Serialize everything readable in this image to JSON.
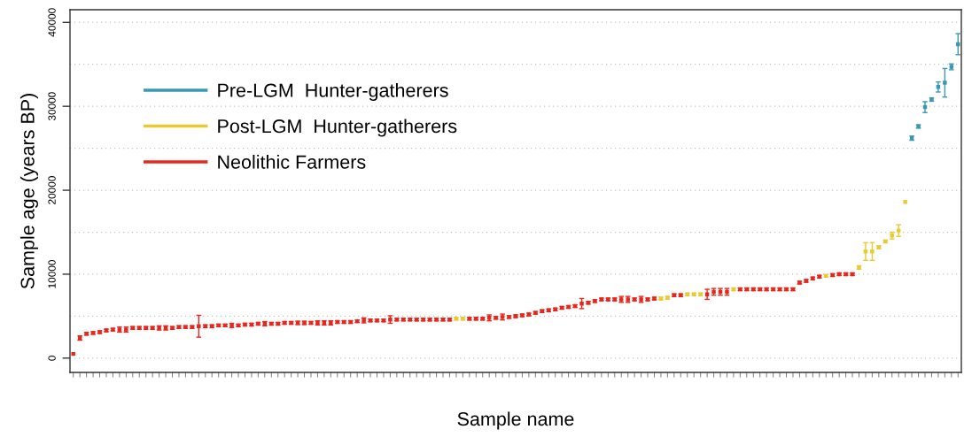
{
  "chart_data": {
    "type": "scatter",
    "xlabel": "Sample name",
    "ylabel": "Sample age (years BP)",
    "categories": [
      null,
      null,
      null,
      null,
      null,
      null,
      null,
      null,
      null,
      null,
      null,
      null,
      null,
      null,
      null,
      null,
      null,
      null,
      null,
      null,
      null,
      null,
      null,
      null,
      null,
      null,
      null,
      null,
      null,
      null,
      null,
      null,
      null,
      null,
      null,
      null,
      null,
      null,
      null,
      null,
      null,
      null,
      null,
      null,
      null,
      null,
      null,
      null,
      null,
      null,
      null,
      null,
      null,
      null,
      null,
      null,
      null,
      null,
      null,
      null,
      null,
      null,
      null,
      null,
      null,
      null,
      null,
      null,
      null,
      null,
      null,
      null,
      null,
      null,
      null,
      null,
      null,
      null,
      null,
      null,
      null,
      null,
      null,
      null,
      null,
      null,
      null,
      null,
      null,
      null,
      null,
      null,
      null,
      null,
      null,
      null,
      null,
      null,
      null,
      null,
      null,
      null,
      null,
      null,
      null,
      null,
      null,
      null,
      null,
      null,
      null,
      null,
      null,
      null,
      null,
      null,
      null,
      null,
      null,
      null,
      null,
      null,
      null,
      null,
      null,
      null,
      null,
      null,
      null,
      null,
      null,
      null,
      null,
      null,
      null
    ],
    "ylim": [
      -1700,
      41500
    ],
    "yticks": [
      0,
      {
        "value": 5000,
        "label": null
      },
      10000,
      {
        "value": 15000,
        "label": null
      },
      20000,
      {
        "value": 25000,
        "label": null
      },
      30000,
      {
        "value": 35000,
        "label": null
      },
      40000
    ],
    "grid": "y",
    "legend": "top left",
    "tick_labels": "y",
    "marker": "square",
    "series": [
      {
        "name": "Pre-LGM  Hunter-gatherers",
        "color": "#3a97b5",
        "values": [
          null,
          null,
          null,
          null,
          null,
          null,
          null,
          null,
          null,
          null,
          null,
          null,
          null,
          null,
          null,
          null,
          null,
          null,
          null,
          null,
          null,
          null,
          null,
          null,
          null,
          null,
          null,
          null,
          null,
          null,
          null,
          null,
          null,
          null,
          null,
          null,
          null,
          null,
          null,
          null,
          null,
          null,
          null,
          null,
          null,
          null,
          null,
          null,
          null,
          null,
          null,
          null,
          null,
          null,
          null,
          null,
          null,
          null,
          null,
          null,
          null,
          null,
          null,
          null,
          null,
          null,
          null,
          null,
          null,
          null,
          null,
          null,
          null,
          null,
          null,
          null,
          null,
          null,
          null,
          null,
          null,
          null,
          null,
          null,
          null,
          null,
          null,
          null,
          null,
          null,
          null,
          null,
          null,
          null,
          null,
          null,
          null,
          null,
          null,
          null,
          null,
          null,
          null,
          null,
          null,
          null,
          null,
          null,
          null,
          null,
          null,
          null,
          null,
          null,
          null,
          null,
          null,
          null,
          null,
          null,
          null,
          null,
          null,
          null,
          null,
          null,
          null,
          26200,
          27600,
          29900,
          30800,
          32300,
          32800,
          34700,
          37400
        ],
        "errors": [
          null,
          null,
          null,
          null,
          null,
          null,
          null,
          null,
          null,
          null,
          null,
          null,
          null,
          null,
          null,
          null,
          null,
          null,
          null,
          null,
          null,
          null,
          null,
          null,
          null,
          null,
          null,
          null,
          null,
          null,
          null,
          null,
          null,
          null,
          null,
          null,
          null,
          null,
          null,
          null,
          null,
          null,
          null,
          null,
          null,
          null,
          null,
          null,
          null,
          null,
          null,
          null,
          null,
          null,
          null,
          null,
          null,
          null,
          null,
          null,
          null,
          null,
          null,
          null,
          null,
          null,
          null,
          null,
          null,
          null,
          null,
          null,
          null,
          null,
          null,
          null,
          null,
          null,
          null,
          null,
          null,
          null,
          null,
          null,
          null,
          null,
          null,
          null,
          null,
          null,
          null,
          null,
          null,
          null,
          null,
          null,
          null,
          null,
          null,
          null,
          null,
          null,
          null,
          null,
          null,
          null,
          null,
          null,
          null,
          null,
          null,
          null,
          null,
          null,
          null,
          null,
          null,
          null,
          null,
          null,
          null,
          null,
          null,
          null,
          null,
          null,
          null,
          250,
          200,
          650,
          200,
          600,
          1700,
          350,
          1250
        ]
      },
      {
        "name": "Post-LGM  Hunter-gatherers",
        "color": "#ebc930",
        "values": [
          null,
          null,
          null,
          null,
          null,
          null,
          null,
          null,
          null,
          null,
          null,
          null,
          null,
          null,
          null,
          null,
          null,
          null,
          null,
          null,
          null,
          null,
          null,
          null,
          null,
          null,
          null,
          null,
          null,
          null,
          null,
          null,
          null,
          null,
          null,
          null,
          null,
          null,
          null,
          null,
          null,
          null,
          null,
          null,
          null,
          null,
          null,
          null,
          null,
          null,
          null,
          null,
          null,
          null,
          null,
          null,
          null,
          null,
          4700,
          4700,
          null,
          null,
          null,
          null,
          null,
          null,
          null,
          null,
          null,
          null,
          null,
          null,
          null,
          null,
          null,
          null,
          null,
          null,
          null,
          null,
          null,
          null,
          null,
          null,
          null,
          null,
          null,
          null,
          null,
          7100,
          7200,
          null,
          null,
          7600,
          7600,
          7600,
          null,
          null,
          null,
          null,
          8200,
          null,
          null,
          null,
          null,
          null,
          null,
          null,
          null,
          null,
          null,
          null,
          null,
          null,
          9800,
          null,
          null,
          null,
          null,
          10800,
          12700,
          12700,
          13200,
          13900,
          14600,
          15200,
          18600,
          null,
          null,
          null,
          null,
          null,
          null,
          null,
          null
        ],
        "errors": [
          null,
          null,
          null,
          null,
          null,
          null,
          null,
          null,
          null,
          null,
          null,
          null,
          null,
          null,
          null,
          null,
          null,
          null,
          null,
          null,
          null,
          null,
          null,
          null,
          null,
          null,
          null,
          null,
          null,
          null,
          null,
          null,
          null,
          null,
          null,
          null,
          null,
          null,
          null,
          null,
          null,
          null,
          null,
          null,
          null,
          null,
          null,
          null,
          null,
          null,
          null,
          null,
          null,
          null,
          null,
          null,
          null,
          null,
          150,
          150,
          null,
          null,
          null,
          null,
          null,
          null,
          null,
          null,
          null,
          null,
          null,
          null,
          null,
          null,
          null,
          null,
          null,
          null,
          null,
          null,
          null,
          null,
          null,
          null,
          null,
          null,
          null,
          null,
          null,
          150,
          150,
          null,
          null,
          150,
          150,
          150,
          null,
          null,
          null,
          null,
          150,
          null,
          null,
          null,
          null,
          null,
          null,
          null,
          null,
          null,
          null,
          null,
          null,
          null,
          150,
          null,
          null,
          null,
          null,
          200,
          1050,
          1050,
          150,
          150,
          400,
          700,
          null,
          null,
          null,
          null,
          null,
          null,
          null,
          null,
          null
        ]
      },
      {
        "name": "Neolithic Farmers",
        "color": "#e8261b",
        "values": [
          500,
          2400,
          2900,
          3000,
          3100,
          3300,
          3400,
          3400,
          3400,
          3600,
          3600,
          3600,
          3600,
          3600,
          3600,
          3600,
          3700,
          3700,
          3700,
          3800,
          3800,
          3800,
          3900,
          3900,
          3900,
          3900,
          4000,
          4000,
          4100,
          4100,
          4100,
          4100,
          4200,
          4200,
          4200,
          4200,
          4200,
          4200,
          4200,
          4200,
          4300,
          4300,
          4300,
          4400,
          4500,
          4500,
          4500,
          4500,
          4600,
          4600,
          4600,
          4600,
          4600,
          4600,
          4600,
          4600,
          4600,
          4600,
          null,
          null,
          4700,
          4700,
          4700,
          4800,
          4800,
          4900,
          4900,
          5000,
          5100,
          5200,
          5400,
          5600,
          5700,
          5800,
          6000,
          6100,
          6200,
          6500,
          6600,
          6800,
          7000,
          7000,
          7000,
          7000,
          7000,
          7000,
          7000,
          7000,
          7100,
          null,
          null,
          7500,
          7500,
          null,
          null,
          null,
          7600,
          7900,
          7900,
          7900,
          null,
          8200,
          8200,
          8200,
          8200,
          8200,
          8200,
          8200,
          8200,
          8200,
          9000,
          9200,
          9500,
          9700,
          null,
          9900,
          10000,
          10000,
          10000,
          null,
          null,
          null,
          null,
          null,
          null,
          null,
          null,
          null,
          null,
          null,
          null,
          null,
          null,
          null,
          null
        ],
        "errors": [
          null,
          250,
          150,
          150,
          150,
          150,
          150,
          300,
          300,
          150,
          150,
          150,
          150,
          250,
          250,
          150,
          150,
          150,
          150,
          1300,
          150,
          150,
          150,
          150,
          250,
          150,
          150,
          150,
          150,
          250,
          150,
          150,
          150,
          150,
          200,
          200,
          150,
          250,
          250,
          250,
          150,
          150,
          150,
          150,
          300,
          150,
          150,
          150,
          450,
          150,
          150,
          150,
          150,
          150,
          150,
          150,
          150,
          150,
          null,
          null,
          150,
          150,
          150,
          350,
          150,
          350,
          150,
          150,
          150,
          150,
          150,
          150,
          150,
          150,
          150,
          150,
          150,
          600,
          150,
          150,
          150,
          150,
          150,
          350,
          350,
          150,
          350,
          150,
          150,
          null,
          null,
          150,
          150,
          null,
          null,
          null,
          600,
          400,
          400,
          400,
          null,
          150,
          150,
          150,
          150,
          150,
          150,
          150,
          150,
          150,
          150,
          150,
          150,
          150,
          null,
          150,
          150,
          150,
          150,
          null,
          null,
          null,
          null,
          null,
          null,
          null,
          null,
          null,
          null,
          null,
          null,
          null,
          null,
          null,
          null
        ]
      }
    ]
  }
}
